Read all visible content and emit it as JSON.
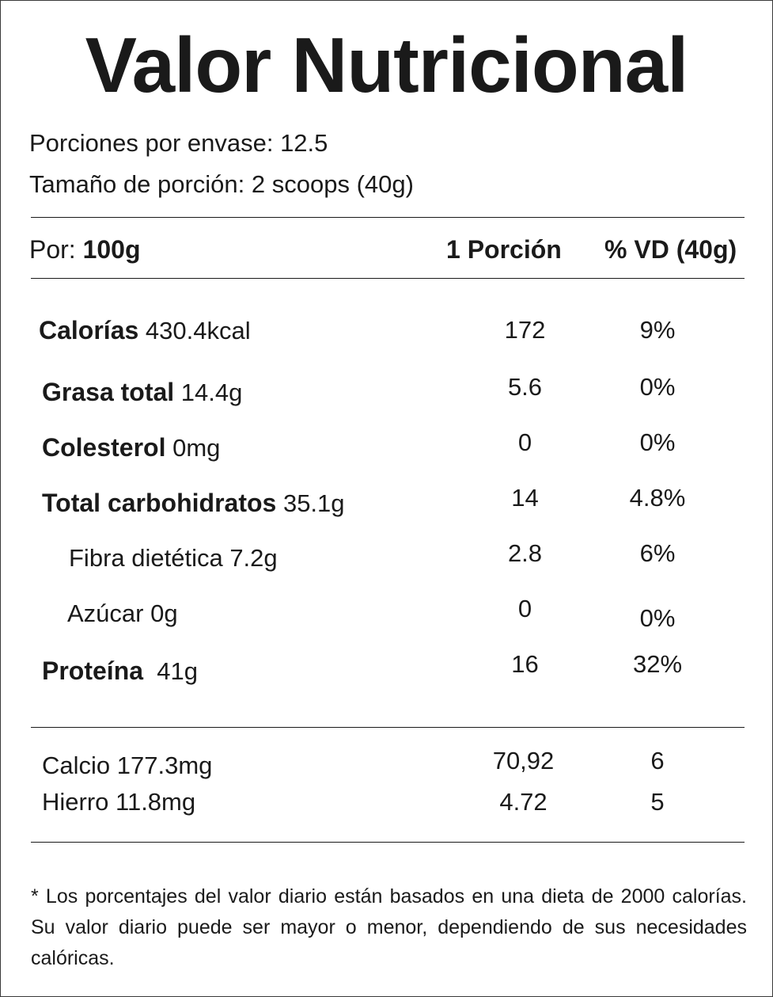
{
  "title": "Valor Nutricional",
  "servings_per_container": "Porciones por envase: 12.5",
  "serving_size": "Tamaño de porción: 2 scoops (40g)",
  "header": {
    "per_label": "Por:",
    "per_value": "100g",
    "col_serving": "1 Porción",
    "col_dv": "% VD (40g)"
  },
  "nutrients": [
    {
      "name": "Calorías",
      "amount": "430.4kcal",
      "serving": "172",
      "dv": "9%"
    },
    {
      "name": "Grasa total",
      "amount": "14.4g",
      "serving": "5.6",
      "dv": "0%"
    },
    {
      "name": "Colesterol",
      "amount": "0mg",
      "serving": "0",
      "dv": "0%"
    },
    {
      "name": "Total carbohidratos",
      "amount": "35.1g",
      "serving": "14",
      "dv": "4.8%"
    },
    {
      "name": "Fibra dietética 7.2g",
      "amount": "",
      "serving": "2.8",
      "dv": "6%"
    },
    {
      "name": "Azúcar 0g",
      "amount": "",
      "serving": "0",
      "dv": "0%"
    },
    {
      "name": "Proteína",
      "amount": "41g",
      "serving": "16",
      "dv": "32%"
    }
  ],
  "minerals": [
    {
      "name": "Calcio  177.3mg",
      "serving": "70,92",
      "dv": "6"
    },
    {
      "name": "Hierro 11.8mg",
      "serving": "4.72",
      "dv": "5"
    }
  ],
  "footnote": "* Los porcentajes del valor diario están basados en una dieta de 2000 calorías. Su valor diario puede ser mayor o menor, dependiendo de sus necesidades calóricas."
}
